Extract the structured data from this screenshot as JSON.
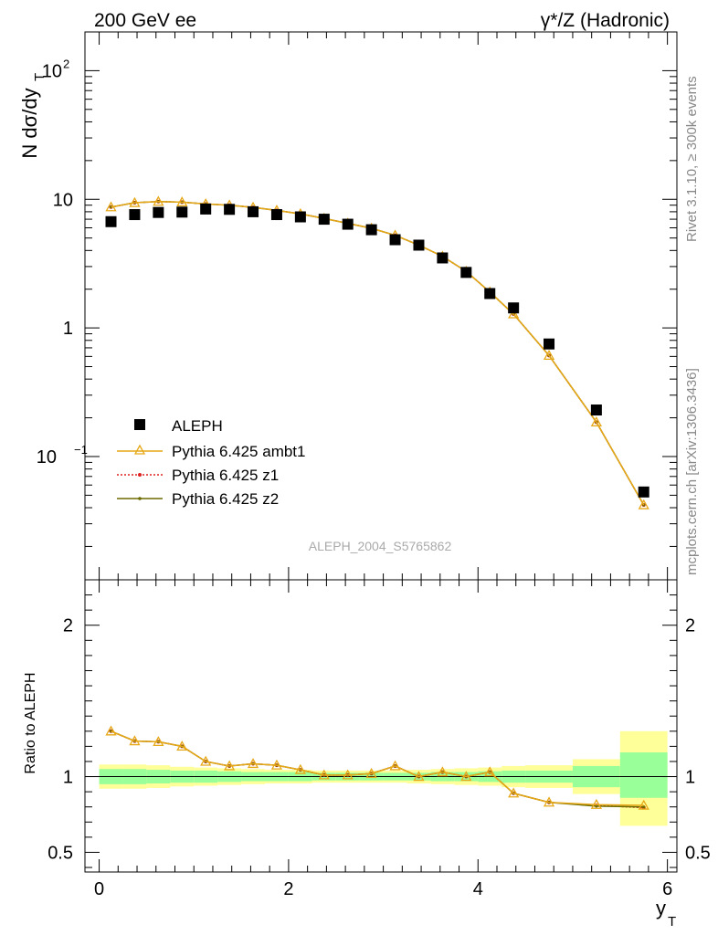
{
  "header": {
    "left": "200 GeV ee",
    "right": "γ*/Z (Hadronic)"
  },
  "side": {
    "version": "Rivet 3.1.10, ≥ 300k events",
    "source": "mcplots.cern.ch [arXiv:1306.3436]"
  },
  "watermark": "ALEPH_2004_S5765862",
  "main_ylabel": "N dσ/dy",
  "main_ylabel_sub": "T",
  "ratio_ylabel": "Ratio to ALEPH",
  "xlabel": "y",
  "xlabel_sub": "T",
  "legend": [
    {
      "label": "ALEPH"
    },
    {
      "label": "Pythia 6.425 ambt1"
    },
    {
      "label": "Pythia 6.425 z1"
    },
    {
      "label": "Pythia 6.425 z2"
    }
  ],
  "colors": {
    "data": "#000000",
    "ambt1": "#e6a817",
    "z1": "#dd2222",
    "z2": "#6b6b00",
    "band_inner": "#99ff99",
    "band_outer": "#ffff99"
  },
  "chart_data": [
    {
      "type": "scatter",
      "panel": "main",
      "xlim": [
        -0.15,
        6.1
      ],
      "ylim": [
        0.011,
        200
      ],
      "yscale": "log",
      "x_ticks": [
        "0",
        "2",
        "4",
        "6"
      ],
      "y_ticks": [
        "10^-1",
        "1",
        "10",
        "10^2"
      ],
      "bins": [
        [
          0,
          0.25
        ],
        [
          0.25,
          0.5
        ],
        [
          0.5,
          0.75
        ],
        [
          0.75,
          1.0
        ],
        [
          1.0,
          1.25
        ],
        [
          1.25,
          1.5
        ],
        [
          1.5,
          1.75
        ],
        [
          1.75,
          2.0
        ],
        [
          2.0,
          2.25
        ],
        [
          2.25,
          2.5
        ],
        [
          2.5,
          2.75
        ],
        [
          2.75,
          3.0
        ],
        [
          3.0,
          3.25
        ],
        [
          3.25,
          3.5
        ],
        [
          3.5,
          3.75
        ],
        [
          3.75,
          4.0
        ],
        [
          4.0,
          4.25
        ],
        [
          4.25,
          4.5
        ],
        [
          4.5,
          5.0
        ],
        [
          5.0,
          5.5
        ],
        [
          5.5,
          6.0
        ]
      ],
      "x": [
        0.125,
        0.375,
        0.625,
        0.875,
        1.125,
        1.375,
        1.625,
        1.875,
        2.125,
        2.375,
        2.625,
        2.875,
        3.125,
        3.375,
        3.625,
        3.875,
        4.125,
        4.375,
        4.75,
        5.25,
        5.75
      ],
      "series": [
        {
          "name": "ALEPH",
          "values": [
            6.7,
            7.6,
            7.9,
            7.95,
            8.4,
            8.35,
            8.0,
            7.6,
            7.3,
            7.0,
            6.4,
            5.8,
            4.85,
            4.4,
            3.5,
            2.7,
            1.85,
            1.43,
            0.75,
            0.23,
            0.053
          ]
        },
        {
          "name": "Pythia 6.425 ambt1",
          "values": [
            8.7,
            9.4,
            9.6,
            9.5,
            9.2,
            9.0,
            8.65,
            8.2,
            7.7,
            7.1,
            6.5,
            5.95,
            5.25,
            4.4,
            3.6,
            2.75,
            1.9,
            1.28,
            0.61,
            0.185,
            0.042
          ]
        },
        {
          "name": "Pythia 6.425 z1",
          "values": [
            8.7,
            9.4,
            9.6,
            9.5,
            9.2,
            9.0,
            8.65,
            8.2,
            7.7,
            7.1,
            6.5,
            5.95,
            5.25,
            4.4,
            3.6,
            2.75,
            1.9,
            1.28,
            0.61,
            0.185,
            0.042
          ]
        },
        {
          "name": "Pythia 6.425 z2",
          "values": [
            8.7,
            9.4,
            9.6,
            9.5,
            9.2,
            9.0,
            8.65,
            8.2,
            7.7,
            7.1,
            6.5,
            5.95,
            5.25,
            4.4,
            3.6,
            2.75,
            1.9,
            1.28,
            0.61,
            0.185,
            0.042
          ]
        }
      ]
    },
    {
      "type": "line",
      "panel": "ratio",
      "xlim": [
        -0.15,
        6.1
      ],
      "ylim": [
        0.37,
        2.3
      ],
      "x_ticks": [
        "0",
        "2",
        "4",
        "6"
      ],
      "y_ticks": [
        "0.5",
        "1",
        "2"
      ],
      "x": [
        0.125,
        0.375,
        0.625,
        0.875,
        1.125,
        1.375,
        1.625,
        1.875,
        2.125,
        2.375,
        2.625,
        2.875,
        3.125,
        3.375,
        3.625,
        3.875,
        4.125,
        4.375,
        4.75,
        5.25,
        5.75
      ],
      "bands": {
        "inner": [
          [
            0.95,
            1.05
          ],
          [
            0.95,
            1.05
          ],
          [
            0.955,
            1.045
          ],
          [
            0.96,
            1.04
          ],
          [
            0.96,
            1.04
          ],
          [
            0.965,
            1.035
          ],
          [
            0.97,
            1.03
          ],
          [
            0.97,
            1.03
          ],
          [
            0.97,
            1.03
          ],
          [
            0.975,
            1.025
          ],
          [
            0.975,
            1.025
          ],
          [
            0.975,
            1.025
          ],
          [
            0.975,
            1.025
          ],
          [
            0.975,
            1.025
          ],
          [
            0.97,
            1.03
          ],
          [
            0.97,
            1.03
          ],
          [
            0.965,
            1.035
          ],
          [
            0.96,
            1.04
          ],
          [
            0.96,
            1.04
          ],
          [
            0.93,
            1.07
          ],
          [
            0.86,
            1.16
          ]
        ],
        "outer": [
          [
            0.92,
            1.08
          ],
          [
            0.92,
            1.08
          ],
          [
            0.925,
            1.075
          ],
          [
            0.935,
            1.065
          ],
          [
            0.94,
            1.06
          ],
          [
            0.945,
            1.055
          ],
          [
            0.95,
            1.05
          ],
          [
            0.955,
            1.045
          ],
          [
            0.955,
            1.045
          ],
          [
            0.96,
            1.04
          ],
          [
            0.96,
            1.04
          ],
          [
            0.96,
            1.04
          ],
          [
            0.96,
            1.04
          ],
          [
            0.955,
            1.045
          ],
          [
            0.95,
            1.05
          ],
          [
            0.945,
            1.055
          ],
          [
            0.94,
            1.06
          ],
          [
            0.93,
            1.07
          ],
          [
            0.925,
            1.075
          ],
          [
            0.885,
            1.115
          ],
          [
            0.675,
            1.3
          ]
        ]
      },
      "series": [
        {
          "name": "Pythia 6.425 ambt1",
          "values": [
            1.3,
            1.235,
            1.23,
            1.2,
            1.1,
            1.07,
            1.085,
            1.075,
            1.045,
            1.01,
            1.01,
            1.02,
            1.07,
            1.0,
            1.03,
            1.0,
            1.03,
            0.89,
            0.83,
            0.815,
            0.81
          ]
        },
        {
          "name": "Pythia 6.425 z1",
          "values": [
            1.3,
            1.235,
            1.23,
            1.2,
            1.1,
            1.07,
            1.085,
            1.075,
            1.045,
            1.01,
            1.01,
            1.02,
            1.07,
            1.0,
            1.03,
            1.0,
            1.03,
            0.89,
            0.83,
            0.81,
            0.795
          ]
        },
        {
          "name": "Pythia 6.425 z2",
          "values": [
            1.3,
            1.235,
            1.23,
            1.2,
            1.1,
            1.07,
            1.085,
            1.075,
            1.045,
            1.01,
            1.01,
            1.02,
            1.07,
            1.0,
            1.03,
            1.0,
            1.03,
            0.89,
            0.83,
            0.805,
            0.8
          ]
        }
      ]
    }
  ]
}
